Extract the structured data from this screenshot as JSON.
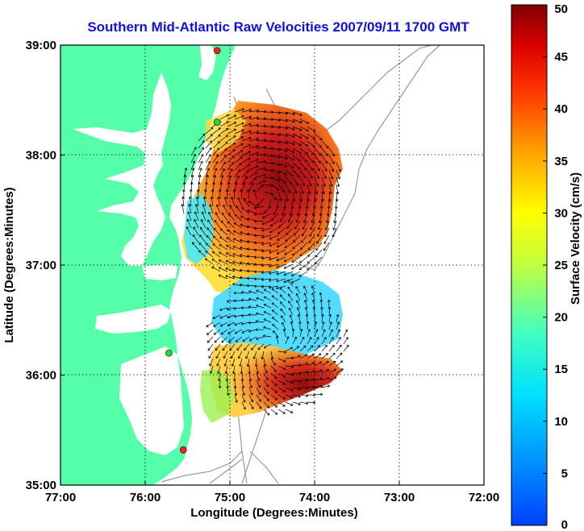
{
  "title": "Southern Mid-Atlantic Raw Velocities 2007/09/11 1700 GMT",
  "xlabel": "Longitude (Degrees:Minutes)",
  "ylabel": "Latitude (Degrees:Minutes)",
  "colorbar": {
    "label": "Surface Velocity (cm/s)",
    "range": [
      0,
      50
    ],
    "ticks": [
      "0",
      "5",
      "10",
      "15",
      "20",
      "25",
      "30",
      "35",
      "40",
      "45",
      "50"
    ],
    "colormap": "jet"
  },
  "map": {
    "lon_range": [
      -77,
      -72
    ],
    "lat_range": [
      35,
      39
    ],
    "x_ticks": [
      "77:00",
      "76:00",
      "75:00",
      "74:00",
      "73:00",
      "72:00"
    ],
    "y_ticks": [
      "35:00",
      "36:00",
      "37:00",
      "38:00",
      "39:00"
    ],
    "grid": "dotted",
    "land_color": "#55ffaa",
    "bathymetry_color": "#999999",
    "sites": [
      {
        "lon": -75.15,
        "lat": 38.95,
        "color": "#ff2020"
      },
      {
        "lon": -75.15,
        "lat": 38.3,
        "color": "#22dd22"
      },
      {
        "lon": -75.72,
        "lat": 36.2,
        "color": "#22dd22"
      },
      {
        "lon": -75.55,
        "lat": 35.32,
        "color": "#ff2020"
      }
    ]
  }
}
